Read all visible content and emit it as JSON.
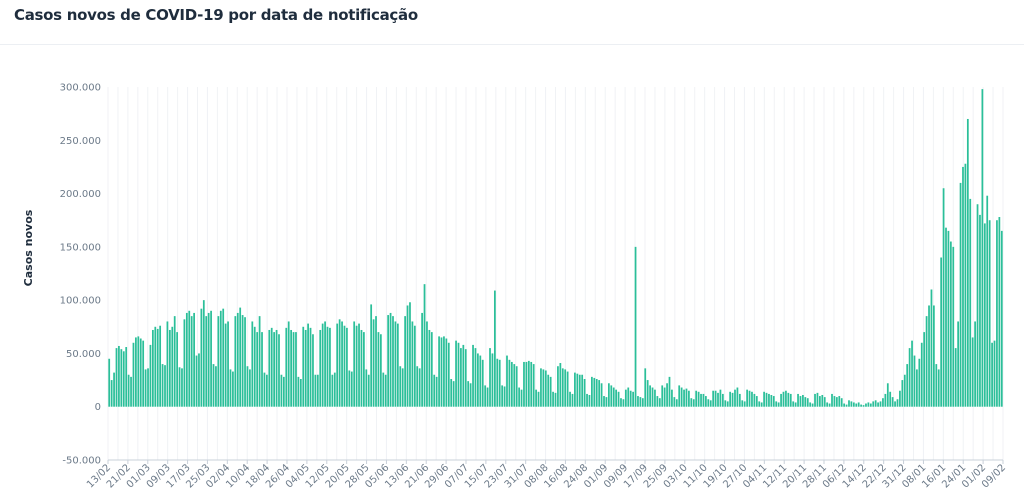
{
  "title": "Casos novos de COVID-19 por data de notificação",
  "chart_data": {
    "type": "bar",
    "title": "Casos novos de COVID-19 por data de notificação",
    "ylabel": "Casos novos",
    "xlabel": "",
    "ylim": [
      -50000,
      300000
    ],
    "ytick_labels": [
      "-50.000",
      "0",
      "50.000",
      "100.000",
      "150.000",
      "200.000",
      "250.000",
      "300.000"
    ],
    "ytick_values": [
      -50000,
      0,
      50000,
      100000,
      150000,
      200000,
      250000,
      300000
    ],
    "xtick_labels": [
      "13/02",
      "21/02",
      "01/03",
      "09/03",
      "17/03",
      "25/03",
      "02/04",
      "10/04",
      "18/04",
      "26/04",
      "04/05",
      "12/05",
      "20/05",
      "28/05",
      "05/06",
      "13/06",
      "21/06",
      "29/06",
      "07/07",
      "15/07",
      "23/07",
      "31/07",
      "08/08",
      "16/08",
      "24/08",
      "01/09",
      "09/09",
      "17/09",
      "25/09",
      "03/10",
      "11/10",
      "19/10",
      "27/10",
      "04/11",
      "12/11",
      "20/11",
      "28/11",
      "06/12",
      "14/12",
      "22/12",
      "31/12",
      "08/01",
      "16/01",
      "24/01",
      "01/02",
      "09/02"
    ],
    "bar_color": "#2bbf99",
    "grid": "vertical",
    "values": [
      45000,
      25000,
      32000,
      55000,
      57000,
      54000,
      52000,
      56000,
      30000,
      28000,
      60000,
      65000,
      66000,
      64000,
      62000,
      35000,
      36000,
      58000,
      72000,
      75000,
      73000,
      76000,
      40000,
      39000,
      80000,
      72000,
      75000,
      85000,
      70000,
      37000,
      36000,
      82000,
      88000,
      90000,
      85000,
      88000,
      48000,
      50000,
      92000,
      100000,
      85000,
      88000,
      90000,
      40000,
      38000,
      85000,
      90000,
      92000,
      78000,
      80000,
      35000,
      33000,
      85000,
      88000,
      93000,
      86000,
      84000,
      38000,
      35000,
      80000,
      75000,
      70000,
      85000,
      70000,
      32000,
      30000,
      72000,
      74000,
      70000,
      72000,
      68000,
      30000,
      28000,
      74000,
      80000,
      72000,
      70000,
      70000,
      28000,
      26000,
      75000,
      72000,
      78000,
      74000,
      68000,
      30000,
      30000,
      72000,
      78000,
      80000,
      75000,
      74000,
      30000,
      32000,
      78000,
      82000,
      80000,
      76000,
      74000,
      34000,
      33000,
      80000,
      76000,
      78000,
      72000,
      70000,
      35000,
      30000,
      96000,
      82000,
      85000,
      70000,
      68000,
      32000,
      30000,
      86000,
      88000,
      85000,
      80000,
      78000,
      38000,
      36000,
      85000,
      95000,
      98000,
      80000,
      76000,
      38000,
      36000,
      88000,
      115000,
      80000,
      72000,
      70000,
      30000,
      28000,
      66000,
      65000,
      66000,
      64000,
      60000,
      26000,
      24000,
      62000,
      60000,
      55000,
      58000,
      54000,
      24000,
      22000,
      58000,
      55000,
      50000,
      48000,
      44000,
      20000,
      18000,
      55000,
      50000,
      109000,
      45000,
      44000,
      20000,
      19000,
      48000,
      44000,
      42000,
      40000,
      38000,
      18000,
      16000,
      42000,
      42000,
      43000,
      42000,
      40000,
      16000,
      14000,
      36000,
      35000,
      34000,
      30000,
      28000,
      14000,
      13000,
      38000,
      41000,
      36000,
      35000,
      33000,
      14000,
      12000,
      32000,
      31000,
      30000,
      30000,
      26000,
      12000,
      11000,
      28000,
      27000,
      26000,
      25000,
      22000,
      10000,
      9000,
      22000,
      20000,
      18000,
      16000,
      14000,
      8000,
      7000,
      16000,
      18000,
      15000,
      14000,
      150000,
      10000,
      9000,
      8000,
      36000,
      25000,
      20000,
      18000,
      16000,
      10000,
      8000,
      20000,
      18000,
      22000,
      28000,
      16000,
      9000,
      7000,
      20000,
      18000,
      16000,
      17000,
      15000,
      8000,
      7000,
      15000,
      14000,
      12000,
      12000,
      10000,
      7000,
      6000,
      15000,
      15000,
      13000,
      16000,
      12000,
      6000,
      5000,
      14000,
      13000,
      16000,
      18000,
      12000,
      6000,
      5000,
      16000,
      15000,
      14000,
      12000,
      10000,
      5000,
      4000,
      14000,
      13000,
      12000,
      11000,
      10000,
      5000,
      4000,
      12000,
      14000,
      15000,
      13000,
      12000,
      5000,
      4000,
      12000,
      10000,
      11000,
      9000,
      8000,
      4000,
      3000,
      12000,
      13000,
      10000,
      11000,
      9000,
      4000,
      3000,
      12000,
      10000,
      9000,
      10000,
      8000,
      3000,
      2000,
      6000,
      5000,
      4000,
      3000,
      4000,
      2000,
      1500,
      3000,
      4000,
      3000,
      5000,
      6000,
      4000,
      5000,
      8000,
      12000,
      22000,
      14000,
      9000,
      5000,
      7000,
      15000,
      25000,
      30000,
      40000,
      55000,
      62000,
      48000,
      35000,
      45000,
      60000,
      70000,
      85000,
      95000,
      110000,
      95000,
      40000,
      35000,
      140000,
      205000,
      168000,
      165000,
      155000,
      150000,
      55000,
      80000,
      210000,
      225000,
      228000,
      270000,
      195000,
      65000,
      80000,
      190000,
      180000,
      298000,
      172000,
      198000,
      175000,
      60000,
      62000,
      175000,
      178000,
      165000
    ]
  }
}
